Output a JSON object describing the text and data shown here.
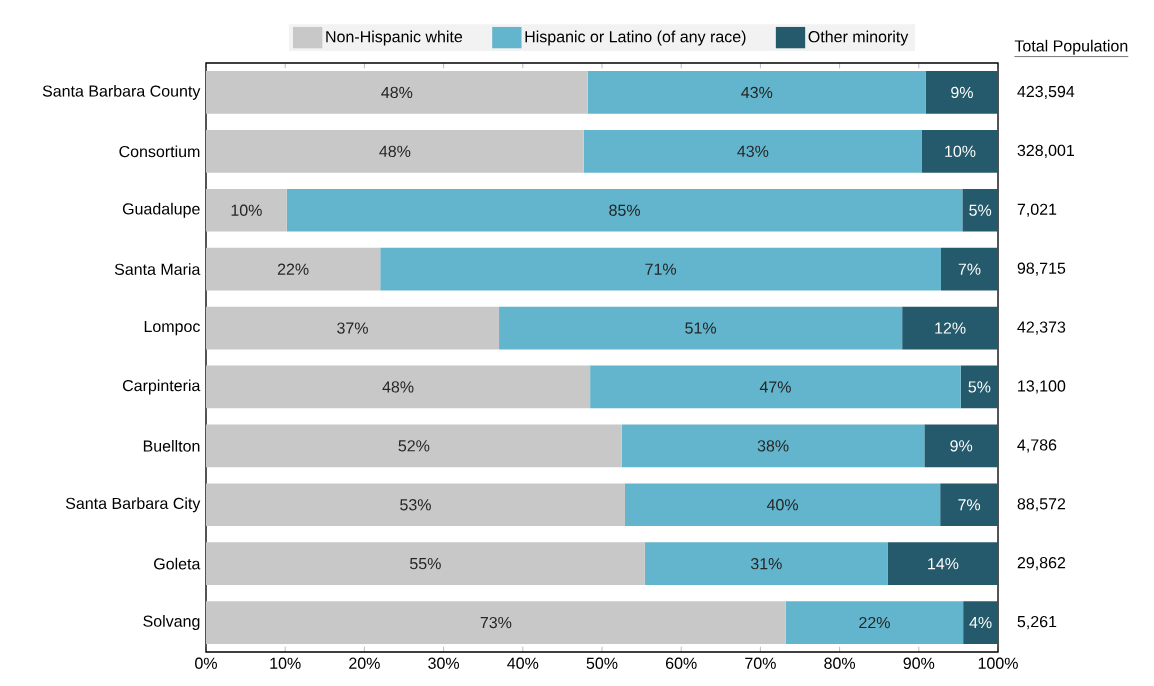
{
  "chart_data": {
    "type": "bar",
    "orientation": "horizontal",
    "stacked": true,
    "legend": "top",
    "categories": [
      "Santa Barbara County",
      "Consortium",
      "Guadalupe",
      "Santa Maria",
      "Lompoc",
      "Carpinteria",
      "Buellton",
      "Santa Barbara City",
      "Goleta",
      "Solvang"
    ],
    "series": [
      {
        "name": "Non-Hispanic white",
        "color": "#c8c8c8",
        "values": [
          48.2,
          47.7,
          10.2,
          22.0,
          37.0,
          48.5,
          52.5,
          52.9,
          55.4,
          73.2
        ],
        "value_labels": [
          "48%",
          "48%",
          "10%",
          "22%",
          "37%",
          "48%",
          "52%",
          "53%",
          "55%",
          "73%"
        ]
      },
      {
        "name": "Hispanic or Latino (of any race)",
        "color": "#62b5cc",
        "values": [
          42.7,
          42.7,
          85.3,
          70.8,
          50.9,
          46.8,
          38.2,
          39.8,
          30.7,
          22.4
        ],
        "value_labels": [
          "43%",
          "43%",
          "85%",
          "71%",
          "51%",
          "47%",
          "38%",
          "40%",
          "31%",
          "22%"
        ]
      },
      {
        "name": "Other minority",
        "color": "#245a6b",
        "values": [
          9.1,
          9.6,
          4.5,
          7.2,
          12.1,
          4.7,
          9.3,
          7.3,
          13.9,
          4.4
        ],
        "value_labels": [
          "9%",
          "10%",
          "5%",
          "7%",
          "12%",
          "5%",
          "9%",
          "7%",
          "14%",
          "4%"
        ]
      }
    ],
    "xlim": [
      0,
      100
    ],
    "xticks": [
      {
        "value": 0,
        "label": "0%"
      },
      {
        "value": 10,
        "label": "10%"
      },
      {
        "value": 20,
        "label": "20%"
      },
      {
        "value": 30,
        "label": "30%"
      },
      {
        "value": 40,
        "label": "40%"
      },
      {
        "value": 50,
        "label": "50%"
      },
      {
        "value": 60,
        "label": "60%"
      },
      {
        "value": 70,
        "label": "70%"
      },
      {
        "value": 80,
        "label": "80%"
      },
      {
        "value": 90,
        "label": "90%"
      },
      {
        "value": 100,
        "label": "100%"
      }
    ],
    "annotations": [
      "Total Population",
      "423,594",
      "328,001",
      "7,021",
      "98,715",
      "42,373",
      "13,100",
      "4,786",
      "88,572",
      "29,862",
      "5,261"
    ]
  }
}
